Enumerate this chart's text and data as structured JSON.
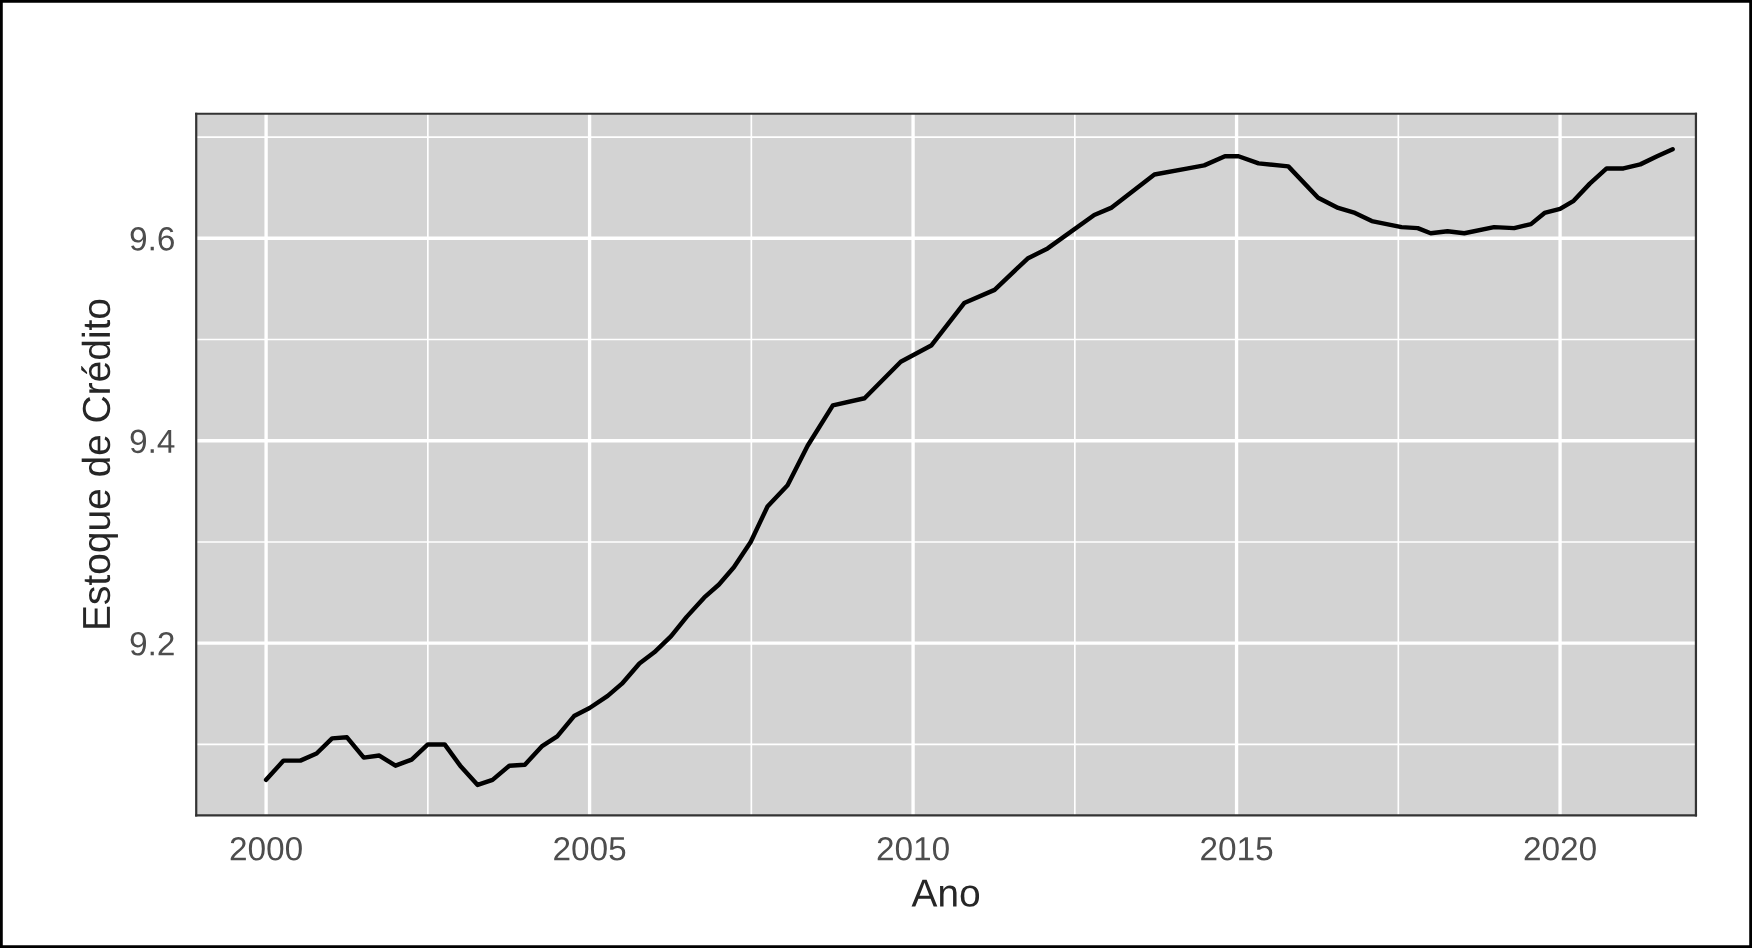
{
  "chart_data": {
    "type": "line",
    "xlabel": "Ano",
    "ylabel": "Estoque de Crédito",
    "xlim": [
      1998.92,
      2022.1
    ],
    "ylim": [
      9.03,
      9.723
    ],
    "xticks": [
      2000,
      2005,
      2010,
      2015,
      2020
    ],
    "yticks": [
      9.2,
      9.4,
      9.6
    ],
    "grid": true,
    "legend": false,
    "series": [
      {
        "color": "#000000",
        "x": [
          2000.0,
          2000.27,
          2000.53,
          2000.78,
          2001.02,
          2001.25,
          2001.51,
          2001.75,
          2002.0,
          2002.25,
          2002.5,
          2002.76,
          2003.0,
          2003.27,
          2003.5,
          2003.76,
          2004.0,
          2004.26,
          2004.5,
          2004.76,
          2005.0,
          2005.28,
          2005.5,
          2005.77,
          2006.0,
          2006.26,
          2006.5,
          2006.77,
          2007.0,
          2007.23,
          2007.49,
          2007.75,
          2008.06,
          2008.37,
          2008.76,
          2009.25,
          2009.81,
          2010.28,
          2010.79,
          2011.26,
          2011.77,
          2012.08,
          2012.8,
          2013.06,
          2013.73,
          2014.25,
          2014.5,
          2014.82,
          2015.03,
          2015.34,
          2015.8,
          2016.26,
          2016.57,
          2016.83,
          2017.09,
          2017.55,
          2017.8,
          2018.0,
          2018.26,
          2018.52,
          2018.98,
          2019.29,
          2019.55,
          2019.76,
          2020.0,
          2020.21,
          2020.46,
          2020.72,
          2020.98,
          2021.24,
          2021.5,
          2021.74
        ],
        "values": [
          9.065,
          9.084,
          9.084,
          9.091,
          9.106,
          9.107,
          9.087,
          9.089,
          9.079,
          9.085,
          9.1,
          9.1,
          9.079,
          9.06,
          9.065,
          9.079,
          9.08,
          9.098,
          9.108,
          9.128,
          9.136,
          9.148,
          9.16,
          9.18,
          9.191,
          9.207,
          9.226,
          9.245,
          9.258,
          9.275,
          9.3,
          9.335,
          9.356,
          9.395,
          9.435,
          9.442,
          9.478,
          9.494,
          9.536,
          9.549,
          9.58,
          9.59,
          9.623,
          9.63,
          9.663,
          9.669,
          9.672,
          9.681,
          9.681,
          9.674,
          9.671,
          9.64,
          9.63,
          9.625,
          9.617,
          9.611,
          9.61,
          9.605,
          9.607,
          9.605,
          9.611,
          9.61,
          9.614,
          9.625,
          9.629,
          9.637,
          9.654,
          9.669,
          9.669,
          9.673,
          9.681,
          9.688
        ]
      }
    ]
  }
}
